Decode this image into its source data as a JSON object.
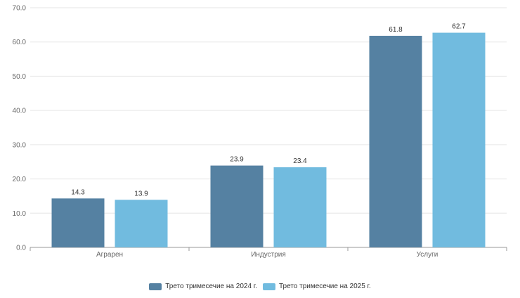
{
  "chart_data": {
    "type": "bar",
    "categories": [
      "Аграрен",
      "Индустрия",
      "Услуги"
    ],
    "series": [
      {
        "name": "Трето тримесечие на 2024 г.",
        "color": "#5581a2",
        "values": [
          14.3,
          23.9,
          61.8
        ],
        "labels": [
          "14.3",
          "23.9",
          "61.8"
        ]
      },
      {
        "name": "Трето тримесечие на 2025 г.",
        "color": "#71bbdf",
        "values": [
          13.9,
          23.4,
          62.7
        ],
        "labels": [
          "13.9",
          "23.4",
          "62.7"
        ]
      }
    ],
    "ylim": [
      0,
      70
    ],
    "yticks": [
      "0.0",
      "10.0",
      "20.0",
      "30.0",
      "40.0",
      "50.0",
      "60.0",
      "70.0"
    ],
    "grid": true,
    "legend": "bottom-center"
  }
}
